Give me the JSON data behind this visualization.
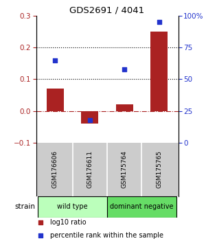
{
  "title": "GDS2691 / 4041",
  "samples": [
    "GSM176606",
    "GSM176611",
    "GSM175764",
    "GSM175765"
  ],
  "log10_ratio": [
    0.07,
    -0.04,
    0.02,
    0.25
  ],
  "percentile_rank": [
    65,
    18,
    58,
    95
  ],
  "bar_color": "#aa2222",
  "dot_color": "#2233cc",
  "left_ylim": [
    -0.1,
    0.3
  ],
  "right_ylim": [
    0,
    100
  ],
  "left_yticks": [
    -0.1,
    0.0,
    0.1,
    0.2,
    0.3
  ],
  "right_yticks": [
    0,
    25,
    50,
    75,
    100
  ],
  "right_yticklabels": [
    "0",
    "25",
    "50",
    "75",
    "100%"
  ],
  "hlines": [
    0.1,
    0.2
  ],
  "groups": [
    {
      "label": "wild type",
      "indices": [
        0,
        1
      ],
      "color": "#bbffbb"
    },
    {
      "label": "dominant negative",
      "indices": [
        2,
        3
      ],
      "color": "#66dd66"
    }
  ],
  "strain_label": "strain",
  "legend_items": [
    {
      "color": "#aa2222",
      "label": "log10 ratio"
    },
    {
      "color": "#2233cc",
      "label": "percentile rank within the sample"
    }
  ],
  "bg_color": "#ffffff",
  "label_bg": "#cccccc",
  "bar_width": 0.5
}
